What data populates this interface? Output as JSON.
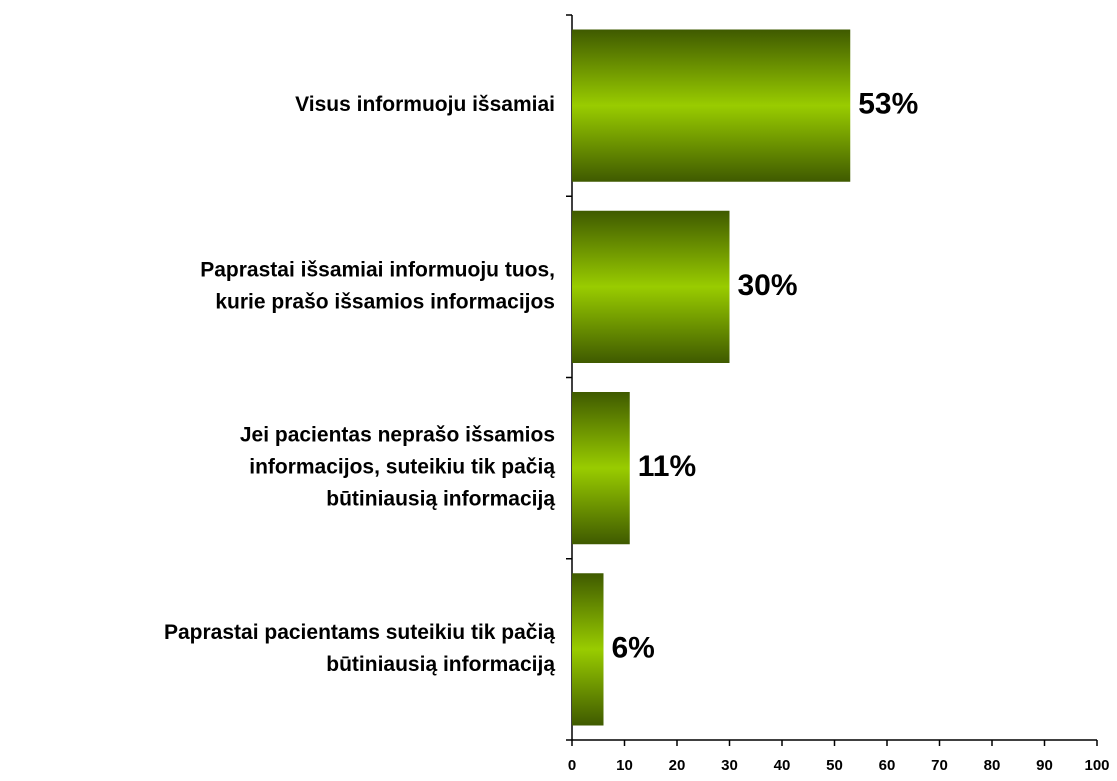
{
  "chart_data": {
    "type": "barh",
    "categories": [
      [
        "Visus informuoju išsamiai"
      ],
      [
        "Paprastai išsamiai informuoju tuos,",
        "kurie prašo išsamios informacijos"
      ],
      [
        "Jei pacientas neprašo išsamios",
        "informacijos, suteikiu tik pačią",
        "būtiniausią informaciją"
      ],
      [
        "Paprastai pacientams suteikiu tik pačią",
        "būtiniausią informaciją"
      ]
    ],
    "values": [
      53,
      30,
      11,
      6
    ],
    "value_labels": [
      "53%",
      "30%",
      "11%",
      "6%"
    ],
    "color": "#99cc00",
    "xlim": [
      0,
      100
    ],
    "xticks": [
      0,
      10,
      20,
      30,
      40,
      50,
      60,
      70,
      80,
      90,
      100
    ],
    "grid": false
  }
}
